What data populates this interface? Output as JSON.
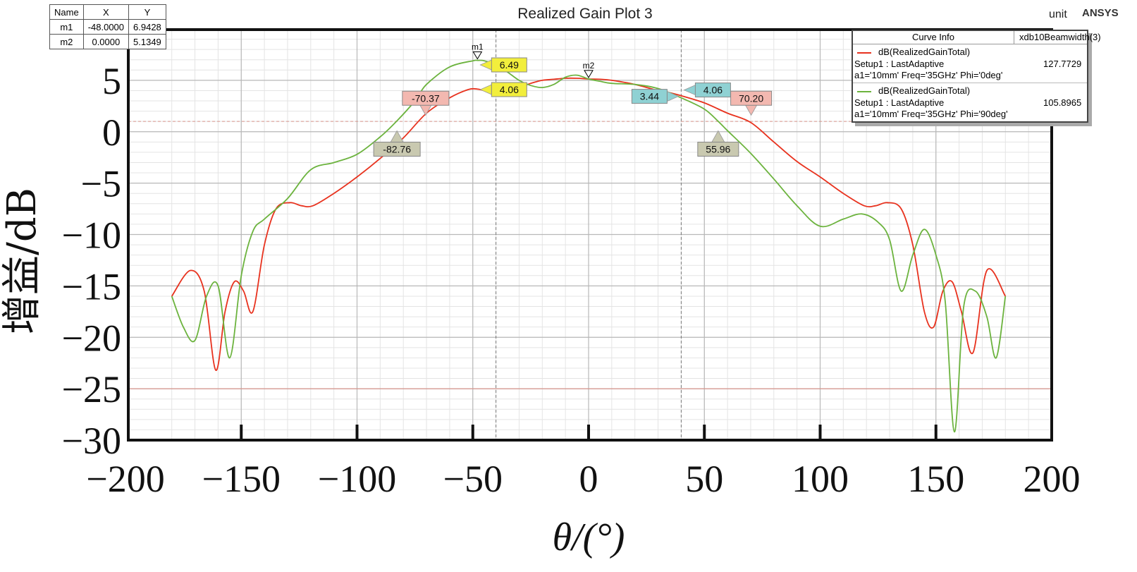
{
  "title": "Realized Gain Plot 3",
  "unit_label": "unit",
  "brand": "ANSYS",
  "colors": {
    "series_0deg": "#e8321e",
    "series_90deg": "#6cb33e",
    "grid": "#cfcfcf",
    "frame": "#111111"
  },
  "marker_table": {
    "headers": [
      "Name",
      "X",
      "Y"
    ],
    "rows": [
      {
        "name": "m1",
        "x": "-48.0000",
        "y": "6.9428"
      },
      {
        "name": "m2",
        "x": "0.0000",
        "y": "5.1349"
      }
    ]
  },
  "curve_info": {
    "header_left": "Curve Info",
    "header_right": "xdb10Beamwidth(3)",
    "entries": [
      {
        "expr": "dB(RealizedGainTotal)",
        "setup": "Setup1 : LastAdaptive",
        "params": "a1='10mm' Freq='35GHz' Phi='0deg'",
        "value": "127.7729",
        "color": "#e8321e"
      },
      {
        "expr": "dB(RealizedGainTotal)",
        "setup": "Setup1 : LastAdaptive",
        "params": "a1='10mm' Freq='35GHz' Phi='90deg'",
        "value": "105.8965",
        "color": "#6cb33e"
      }
    ]
  },
  "chart_data": {
    "type": "line",
    "title": "Realized Gain Plot 3",
    "xlabel": "θ/(°)",
    "ylabel": "增益/dB",
    "xlim": [
      -200,
      200
    ],
    "ylim": [
      -30,
      10
    ],
    "x_ticks": [
      "−200",
      "−150",
      "−100",
      "−50",
      "0",
      "50",
      "100",
      "150",
      "200"
    ],
    "y_ticks": [
      "5",
      "0",
      "−5",
      "−10",
      "−15",
      "−20",
      "−25",
      "−30"
    ],
    "grid": true,
    "series": [
      {
        "name": "dB(RealizedGainTotal) Phi='0deg'",
        "color": "#e8321e",
        "x": [
          -180,
          -172,
          -166,
          -161,
          -157,
          -153,
          -149,
          -145,
          -140,
          -135,
          -129,
          -124,
          -119,
          -110,
          -100,
          -90,
          -80,
          -70,
          -60,
          -52,
          -48,
          -45,
          -40,
          -35,
          -30,
          -25,
          -20,
          -15,
          -10,
          -5,
          0,
          5,
          10,
          20,
          30,
          35,
          40,
          50,
          60,
          70,
          80,
          90,
          100,
          110,
          119,
          124,
          129,
          135,
          140,
          145,
          149,
          153,
          157,
          161,
          166,
          172,
          180
        ],
        "values": [
          -16,
          -13.5,
          -15.5,
          -23.2,
          -17.5,
          -14.6,
          -15.5,
          -17.5,
          -11,
          -7.5,
          -6.9,
          -7.2,
          -7.2,
          -6,
          -4.4,
          -2.6,
          -0.6,
          1.8,
          3.3,
          4.1,
          4.15,
          4.0,
          3.9,
          4.06,
          4.3,
          4.7,
          5.0,
          5.1,
          5.2,
          5.2,
          5.13,
          5.1,
          5.0,
          4.6,
          4.0,
          3.8,
          3.5,
          2.8,
          1.8,
          0.9,
          -1.0,
          -2.9,
          -4.4,
          -6.0,
          -7.2,
          -7.2,
          -6.9,
          -7.5,
          -11,
          -17.5,
          -19.0,
          -15.5,
          -14.6,
          -17.5,
          -21.5,
          -13.5,
          -16
        ]
      },
      {
        "name": "dB(RealizedGainTotal) Phi='90deg'",
        "color": "#6cb33e",
        "x": [
          -180,
          -175,
          -170,
          -165,
          -160,
          -155,
          -150,
          -145,
          -140,
          -130,
          -120,
          -110,
          -100,
          -90,
          -83,
          -75,
          -70,
          -60,
          -50,
          -48,
          -45,
          -40,
          -35,
          -30,
          -25,
          -20,
          -15,
          -10,
          -5,
          0,
          5,
          10,
          20,
          30,
          40,
          50,
          56,
          60,
          70,
          80,
          90,
          100,
          110,
          118,
          125,
          130,
          135,
          140,
          145,
          150,
          154,
          158,
          162,
          167,
          172,
          176,
          180
        ],
        "values": [
          -16,
          -19,
          -20.3,
          -16,
          -15,
          -22,
          -14,
          -9.7,
          -8.5,
          -6.5,
          -3.7,
          -3.0,
          -2.2,
          -0.5,
          1.0,
          3.0,
          4.6,
          6.3,
          6.9,
          6.94,
          6.9,
          6.5,
          5.8,
          5.0,
          4.5,
          4.3,
          4.6,
          5.3,
          5.5,
          5.13,
          4.9,
          4.7,
          4.6,
          4.2,
          3.3,
          2.2,
          1.0,
          0.1,
          -2.1,
          -4.6,
          -7.2,
          -9.2,
          -8.5,
          -8.0,
          -8.8,
          -10.5,
          -15.5,
          -12,
          -9.5,
          -12,
          -16.5,
          -29.2,
          -17,
          -15.5,
          -18,
          -22,
          -16
        ]
      }
    ],
    "markers": [
      {
        "name": "m1",
        "x": -48.0,
        "y": 6.9428
      },
      {
        "name": "m2",
        "x": 0.0,
        "y": 5.1349
      }
    ],
    "annotations": [
      {
        "text": "6.49",
        "x": -48,
        "y": 6.5,
        "fill": "#f2ee3c",
        "side": "right"
      },
      {
        "text": "4.06",
        "x": -48,
        "y": 4.1,
        "fill": "#f2ee3c",
        "side": "right"
      },
      {
        "text": "-70.37",
        "x": -70.37,
        "y": 1.2,
        "fill": "#f3b8b0",
        "side": "up"
      },
      {
        "text": "-82.76",
        "x": -82.76,
        "y": -0.6,
        "fill": "#c9c9b0",
        "side": "down"
      },
      {
        "text": "3.44",
        "x": 40,
        "y": 3.44,
        "fill": "#8fd1d3",
        "side": "left"
      },
      {
        "text": "4.06",
        "x": 40,
        "y": 4.06,
        "fill": "#8fd1d3",
        "side": "right"
      },
      {
        "text": "70.20",
        "x": 70.2,
        "y": 1.2,
        "fill": "#f3b8b0",
        "side": "up"
      },
      {
        "text": "55.96",
        "x": 55.96,
        "y": -0.6,
        "fill": "#c9c9b0",
        "side": "down"
      }
    ],
    "reference_lines": {
      "vertical_x": [
        -40,
        40
      ],
      "horizontal_y": [
        1.0,
        -25.0
      ]
    }
  }
}
